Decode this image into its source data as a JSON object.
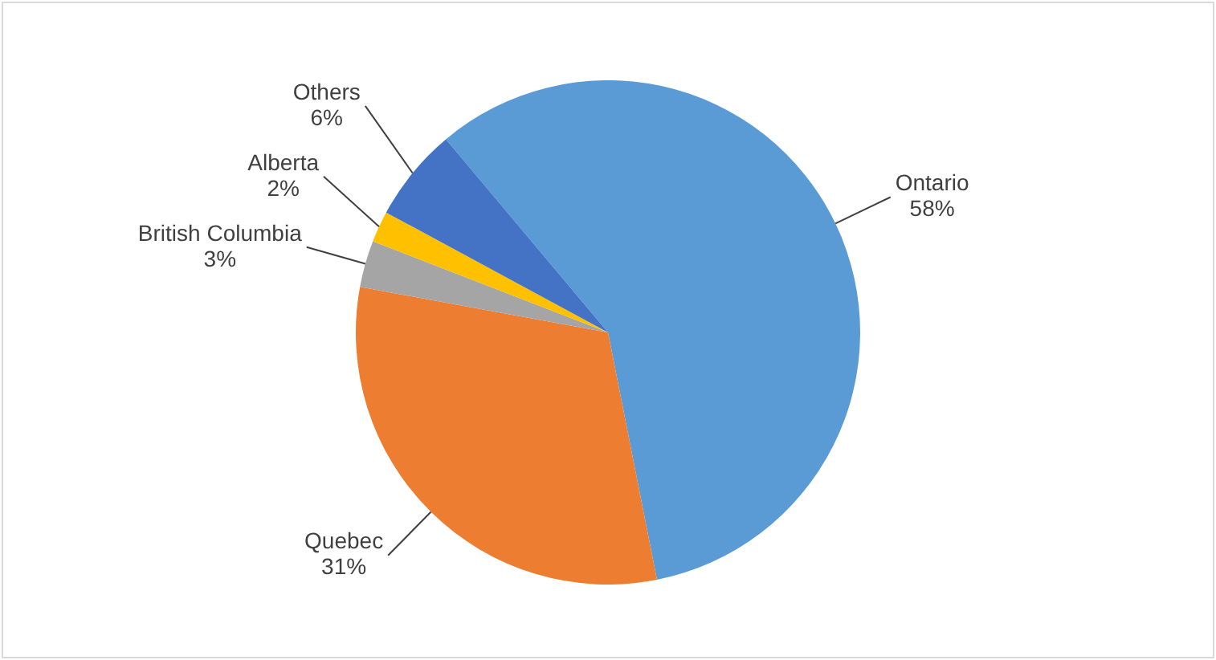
{
  "chart_data": {
    "type": "pie",
    "categories": [
      "Ontario",
      "Quebec",
      "British Columbia",
      "Alberta",
      "Others"
    ],
    "values": [
      58,
      31,
      3,
      2,
      6
    ],
    "colors": [
      "#5b9bd5",
      "#ed7d31",
      "#a5a5a5",
      "#ffc000",
      "#4472c4"
    ],
    "value_labels": [
      "58%",
      "31%",
      "3%",
      "2%",
      "6%"
    ],
    "legend": false
  }
}
